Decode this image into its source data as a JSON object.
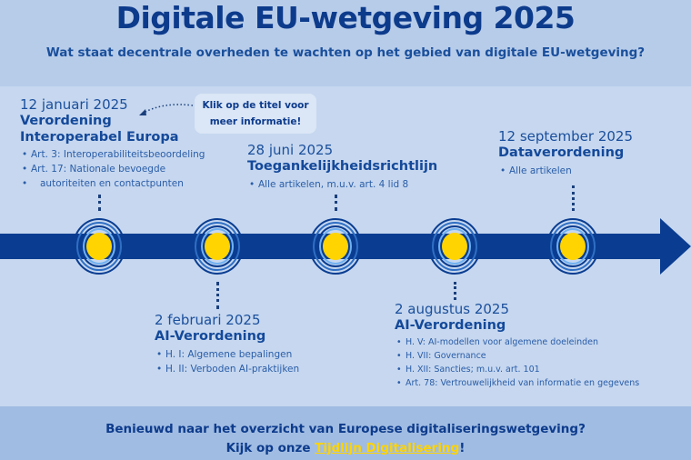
{
  "header": {
    "title": "Digitale EU-wetgeving 2025",
    "subtitle": "Wat staat decentrale overheden te wachten op het gebied van digitale EU-wetgeving?"
  },
  "callout": {
    "line1": "Klik op de titel voor",
    "line2": "meer informatie!"
  },
  "events": [
    {
      "date": "12 januari 2025",
      "title_line1": "Verordening",
      "title_line2": "Interoperabel Europa",
      "bullets": [
        "Art. 3: Interoperabiliteitsbeoordeling",
        "Art. 17: Nationale bevoegde",
        "autoriteiten en contactpunten"
      ]
    },
    {
      "date": "2 februari 2025",
      "title": "AI-Verordening",
      "bullets": [
        "H. I: Algemene bepalingen",
        "H. II: Verboden AI-praktijken"
      ]
    },
    {
      "date": "28 juni 2025",
      "title": "Toegankelijkheidsrichtlijn",
      "bullets": [
        "Alle artikelen, m.u.v. art. 4 lid 8"
      ]
    },
    {
      "date": "2 augustus 2025",
      "title": "AI-Verordening",
      "bullets": [
        "H. V: AI-modellen voor algemene doeleinden",
        "H. VII: Governance",
        "H. XII: Sancties; m.u.v. art. 101",
        "Art. 78: Vertrouwelijkheid van informatie en gegevens"
      ]
    },
    {
      "date": "12 september 2025",
      "title": "Dataverordening",
      "bullets": [
        "Alle artikelen"
      ]
    }
  ],
  "footer": {
    "line1": "Benieuwd naar het overzicht van Europese digitaliseringswetgeving?",
    "line2_prefix": "Kijk op onze ",
    "link": "Tijdlijn Digitalisering",
    "line2_suffix": "!"
  },
  "colors": {
    "primary": "#0a3d91",
    "accent": "#ffd400",
    "background": "#c6d7ef"
  }
}
